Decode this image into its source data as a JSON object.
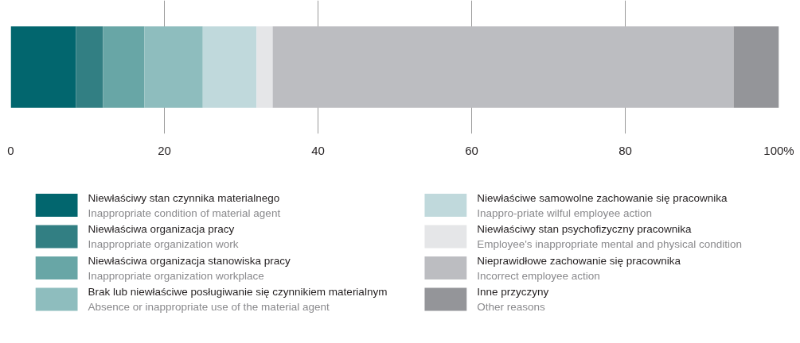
{
  "chart_data": {
    "type": "bar",
    "stacked": true,
    "orientation": "horizontal",
    "categories": [
      null
    ],
    "series": [
      {
        "name": "Niewłaściwy stan czynnika materialnego\nInappropriate condition of material agent",
        "color": "#02666e",
        "values": [
          8.5
        ]
      },
      {
        "name": "Niewłaściwa organizacja pracy\nInappropriate organization work",
        "color": "#327f83",
        "values": [
          3.5
        ]
      },
      {
        "name": "Niewłaściwa organizacja stanowiska pracy\nInappropriate organization workplace",
        "color": "#68a6a6",
        "values": [
          5.4
        ]
      },
      {
        "name": "Brak lub niewłaściwe posługiwanie się czynnikiem materialnym\nAbsence or inappropriate use of the material agent",
        "color": "#8ebdbe",
        "values": [
          7.6
        ]
      },
      {
        "name": "Niewłaściwe samowolne zachowanie się pracownika\nInappro-priate wilful employee action",
        "color": "#c0d9dc",
        "values": [
          7.0
        ]
      },
      {
        "name": "Niewłaściwy stan psychofizyczny pracownika\nEmployee's inappropriate mental and physical condition",
        "color": "#e5e6e8",
        "values": [
          2.1
        ]
      },
      {
        "name": "Nieprawidłowe zachowanie się pracownika\nIncorrect employee action",
        "color": "#bcbdc1",
        "values": [
          60.0
        ]
      },
      {
        "name": "Inne przyczyny\nOther reasons",
        "color": "#949599",
        "values": [
          5.9
        ]
      }
    ],
    "xlim": [
      0,
      100
    ],
    "xticks": [
      0,
      20,
      40,
      60,
      80,
      {
        "value": 100,
        "label": "100%"
      }
    ],
    "grid": "x",
    "legend": "bottom"
  }
}
